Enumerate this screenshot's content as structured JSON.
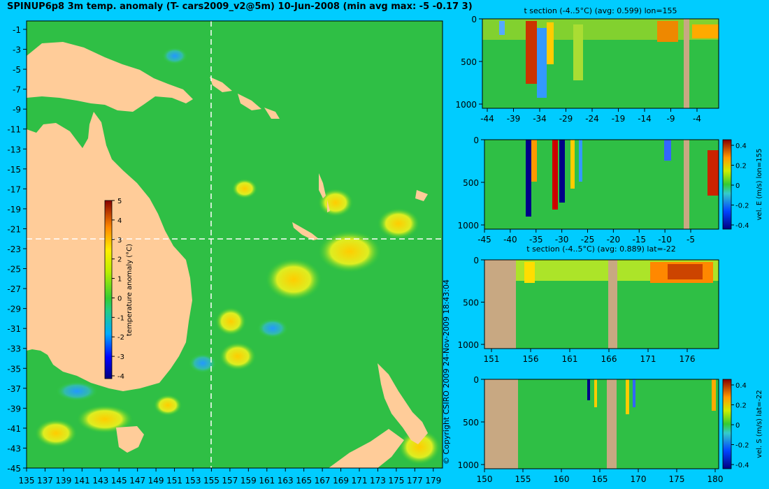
{
  "title": "SPINUP6p8 3m temp. anomaly (T- cars2009_v2@5m) 10-Jun-2008 (min avg max: -5 -0.17 3)",
  "copyright": "© Copyright CSIRO 2009   24-Nov-2009 18:43:04",
  "map": {
    "lon_ticks": [
      "135",
      "137",
      "139",
      "141",
      "143",
      "145",
      "147",
      "149",
      "151",
      "153",
      "155",
      "157",
      "159",
      "161",
      "163",
      "165",
      "167",
      "169",
      "171",
      "173",
      "175",
      "177",
      "179"
    ],
    "lat_ticks": [
      "-1",
      "-3",
      "-5",
      "-7",
      "-9",
      "-11",
      "-13",
      "-15",
      "-17",
      "-19",
      "-21",
      "-23",
      "-25",
      "-27",
      "-29",
      "-31",
      "-33",
      "-35",
      "-37",
      "-39",
      "-41",
      "-43",
      "-45"
    ],
    "colorbar": {
      "label": "temperature anomaly (°C)",
      "ticks": [
        "5",
        "4",
        "3",
        "2",
        "1",
        "0",
        "-1",
        "-2",
        "-3",
        "-4"
      ]
    },
    "crosshair": {
      "lon": 155,
      "lat": -22
    }
  },
  "panels": [
    {
      "id": "t-section-lon",
      "title": "t section (-4..5°C) (avg: 0.599) lon=155",
      "x_ticks": [
        "-44",
        "-39",
        "-34",
        "-29",
        "-24",
        "-19",
        "-14",
        "-9",
        "-4"
      ],
      "y_ticks": [
        "0",
        "500",
        "1000"
      ]
    },
    {
      "id": "vel-e-lon",
      "title": "",
      "x_ticks": [
        "-45",
        "-40",
        "-35",
        "-30",
        "-25",
        "-20",
        "-15",
        "-10",
        "-5"
      ],
      "y_ticks": [
        "0",
        "500",
        "1000"
      ],
      "colorbar": {
        "label": "vel. E (m/s) lon=155",
        "ticks": [
          "0.4",
          "0.2",
          "0",
          "-0.2",
          "-0.4"
        ]
      }
    },
    {
      "id": "t-section-lat",
      "title": "t section (-4..5°C) (avg: 0.889) lat=-22",
      "x_ticks": [
        "151",
        "156",
        "161",
        "166",
        "171",
        "176"
      ],
      "y_ticks": [
        "0",
        "500",
        "1000"
      ]
    },
    {
      "id": "vel-s-lat",
      "title": "",
      "x_ticks": [
        "150",
        "155",
        "160",
        "165",
        "170",
        "175",
        "180"
      ],
      "y_ticks": [
        "0",
        "500",
        "1000"
      ],
      "colorbar": {
        "label": "vel. S (m/s) lat=-22",
        "ticks": [
          "0.4",
          "0.2",
          "0",
          "-0.2",
          "-0.4"
        ]
      }
    }
  ],
  "colors": {
    "background": "#00ccff",
    "land": "#ffcc99",
    "section_land": "#c8a882",
    "ocean": "#33cc33"
  }
}
